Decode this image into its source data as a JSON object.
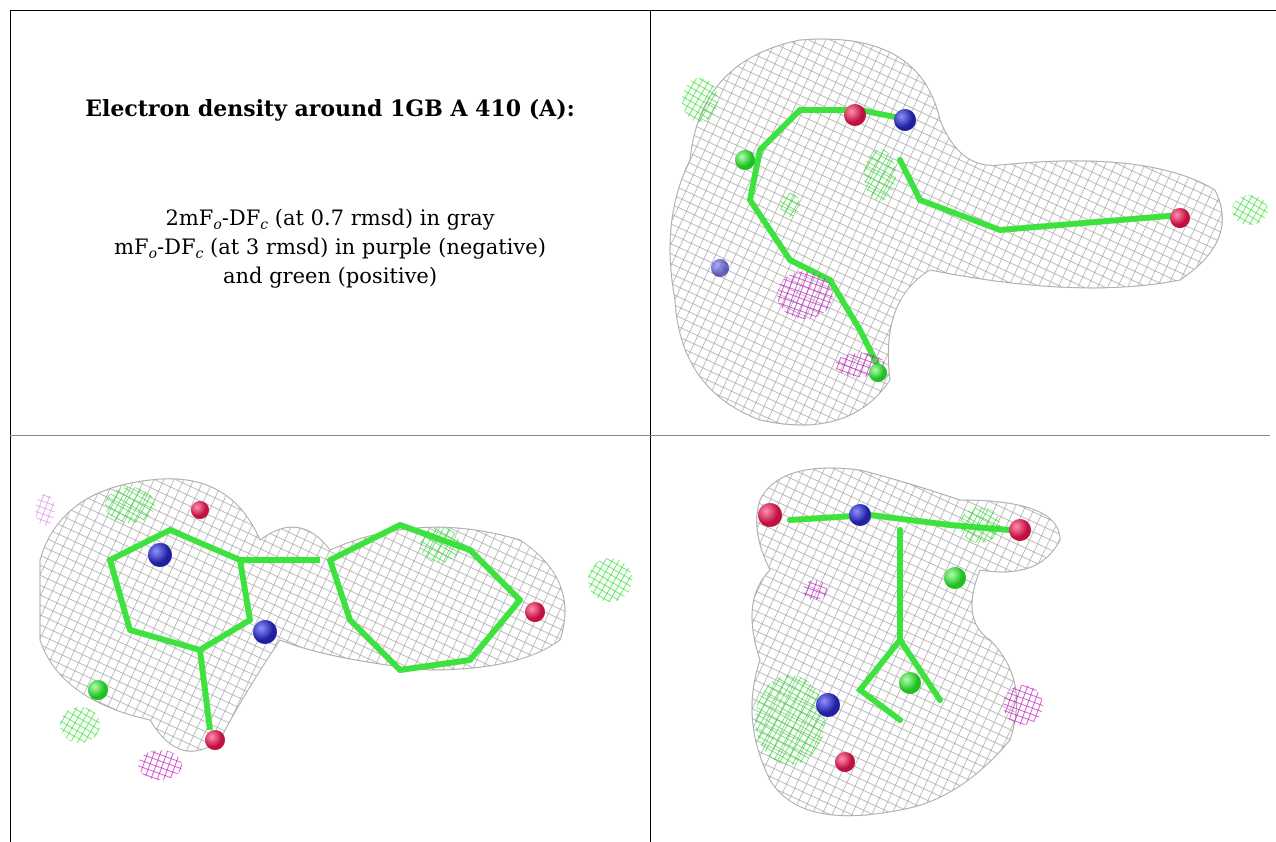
{
  "title": "Electron density around 1GB A 410 (A):",
  "legend": [
    [
      "2mF",
      "o",
      "-DF",
      "c",
      " (at 0.7 rmsd) in gray"
    ],
    [
      "mF",
      "o",
      "-DF",
      "c",
      " (at 3 rmsd) in purple (negative)"
    ],
    [
      "and green (positive)"
    ]
  ]
}
